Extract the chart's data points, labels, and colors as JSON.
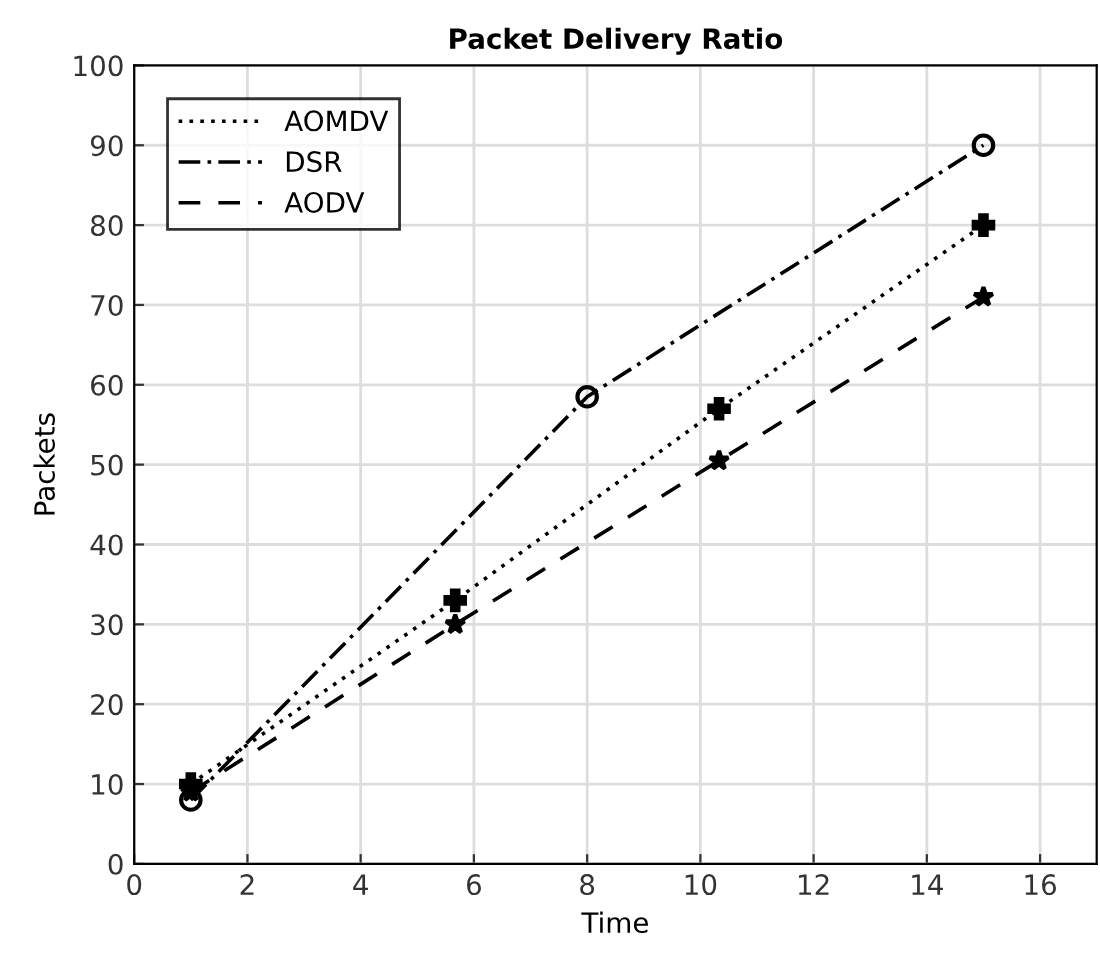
{
  "chart_data": {
    "type": "line",
    "title": "Packet Delivery Ratio",
    "xlabel": "Time",
    "ylabel": "Packets",
    "xlim": [
      0,
      17
    ],
    "xticks": [
      0,
      2,
      4,
      6,
      8,
      10,
      12,
      14,
      16
    ],
    "ylim": [
      0,
      100
    ],
    "yticks": [
      0,
      10,
      20,
      30,
      40,
      50,
      60,
      70,
      80,
      90,
      100
    ],
    "grid": true,
    "legend": "top left",
    "series": [
      {
        "name": "AOMDV",
        "color": "#000000",
        "x": [
          1,
          5.67,
          10.33,
          15
        ],
        "values": [
          10,
          33,
          57,
          80
        ],
        "marker": "cross",
        "line_style": "dotted"
      },
      {
        "name": "DSR",
        "color": "#000000",
        "x": [
          1,
          8,
          15
        ],
        "values": [
          8,
          58.5,
          90
        ],
        "marker": "circle",
        "line_style": "dashdot"
      },
      {
        "name": "AODV",
        "color": "#000000",
        "x": [
          1,
          5.67,
          10.33,
          15
        ],
        "values": [
          9,
          30,
          50.5,
          71
        ],
        "marker": "star",
        "line_style": "dashed"
      }
    ]
  }
}
